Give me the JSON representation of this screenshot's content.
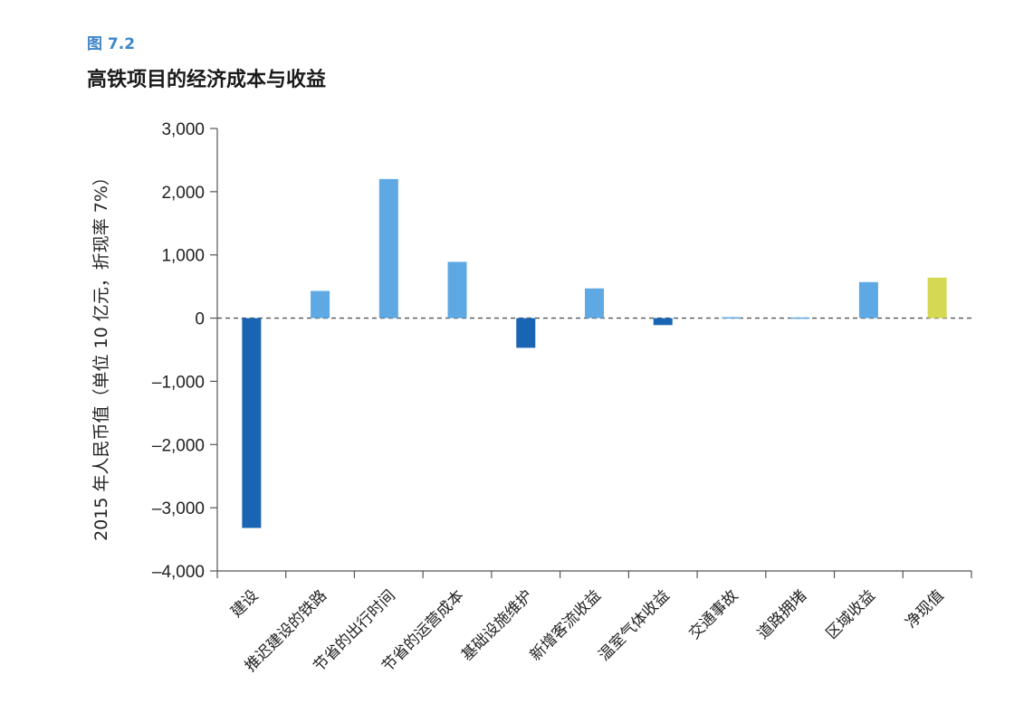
{
  "figure_label": "图 7.2",
  "title": "高铁项目的经济成本与收益",
  "chart_data": {
    "type": "bar",
    "categories": [
      "建设",
      "推迟建设的铁路",
      "节省的出行时间",
      "节省的运营成本",
      "基础设施维护",
      "新增客流收益",
      "温室气体收益",
      "交通事故",
      "道路拥堵",
      "区域收益",
      "净现值"
    ],
    "values": [
      -3320,
      430,
      2200,
      890,
      -470,
      470,
      -110,
      15,
      10,
      570,
      640
    ],
    "bar_colors": [
      "#1a65b3",
      "#5ea9e4",
      "#5ea9e4",
      "#5ea9e4",
      "#1a65b3",
      "#5ea9e4",
      "#1a65b3",
      "#5ea9e4",
      "#5ea9e4",
      "#5ea9e4",
      "#d4d951"
    ],
    "ylabel": "2015 年人民币值（单位 10 亿元，折现率 7%）",
    "xlabel": "",
    "ylim": [
      -4000,
      3000
    ],
    "yticks": [
      3000,
      2000,
      1000,
      0,
      -1000,
      -2000,
      -3000,
      -4000
    ],
    "ytick_labels": [
      "3,000",
      "2,000",
      "1,000",
      "0",
      "–1,000",
      "–2,000",
      "–3,000",
      "–4,000"
    ],
    "zero_line": "dashed",
    "grid": false
  }
}
